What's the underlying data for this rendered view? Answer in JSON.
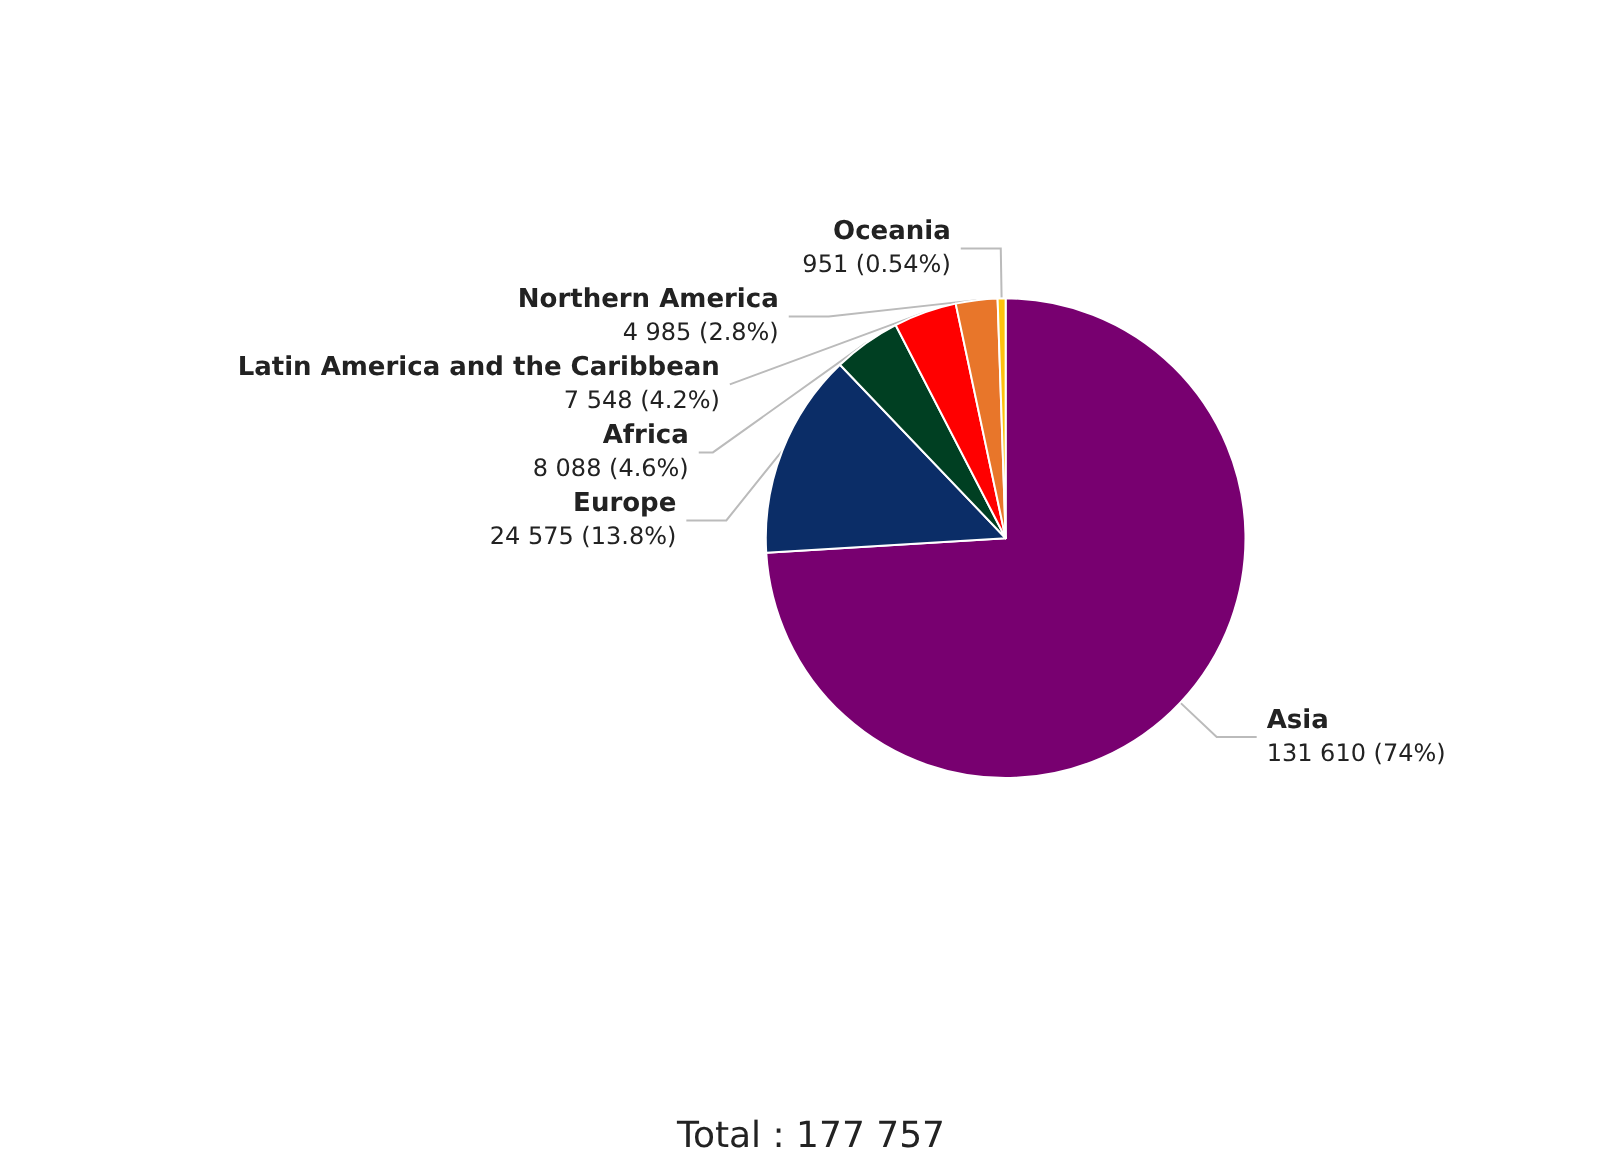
{
  "chart_data": {
    "type": "pie",
    "categories": [
      "Asia",
      "Europe",
      "Africa",
      "Latin America and the Caribbean",
      "Northern America",
      "Oceania"
    ],
    "values": [
      131610,
      24575,
      8088,
      7548,
      4985,
      951
    ],
    "colors": [
      "#780070",
      "#0b2d67",
      "#003f22",
      "#ff0000",
      "#e8762a",
      "#ffc20e"
    ],
    "value_labels": [
      "131 610 (74%)",
      "24 575 (13.8%)",
      "8 088 (4.6%)",
      "7 548 (4.2%)",
      "4 985 (2.8%)",
      "951 (0.54%)"
    ],
    "annotations": [
      "Total : 177 757"
    ],
    "legend": false
  }
}
